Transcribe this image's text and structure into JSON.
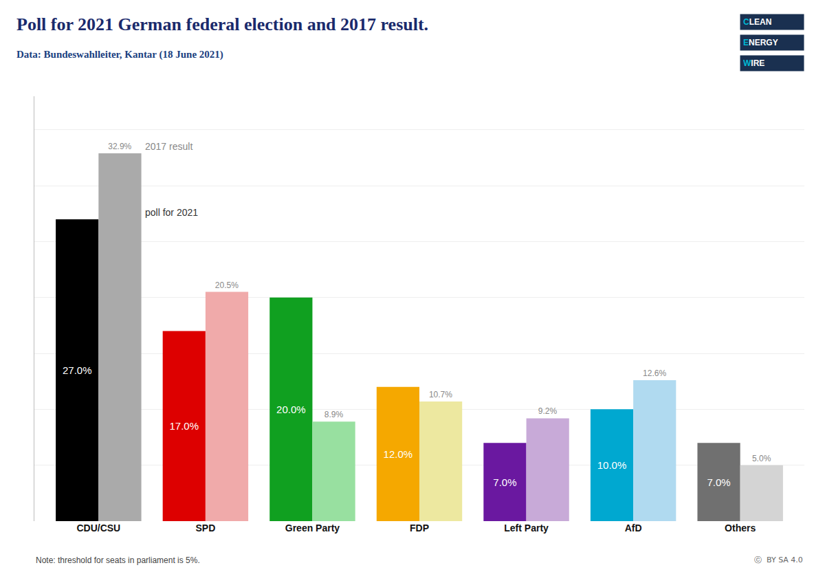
{
  "chart_data": {
    "type": "bar",
    "title": "Poll for 2021 German federal election and 2017 result.",
    "subtitle": "Data: Bundeswahlleiter, Kantar (18 June 2021)",
    "annotations": [
      "Note: threshold for seats in parliament is 5%.",
      "ⓒ  BY SA 4.0",
      "CLEAN",
      "ENERGY",
      "WIRE"
    ],
    "categories": [
      "CDU/CSU",
      "SPD",
      "Green Party",
      "FDP",
      "Left Party",
      "AfD",
      "Others"
    ],
    "series": [
      {
        "name": "poll for 2021",
        "colors": [
          "#000000",
          "#dd0000",
          "#10a020",
          "#f5a800",
          "#6a18a0",
          "#00a8d0",
          "#707070"
        ],
        "values": [
          27.0,
          17.0,
          20.0,
          12.0,
          7.0,
          10.0,
          7.0
        ],
        "value_labels": [
          "27.0%",
          "17.0%",
          "20.0%",
          "12.0%",
          "7.0%",
          "10.0%",
          "7.0%"
        ]
      },
      {
        "name": "2017 result",
        "colors": [
          "#aaaaaa",
          "#f0aaaa",
          "#98e0a0",
          "#ede8a0",
          "#c8aad8",
          "#b0daf0",
          "#d4d4d4"
        ],
        "values": [
          32.9,
          20.5,
          8.9,
          10.7,
          9.2,
          12.6,
          5.0
        ],
        "value_labels": [
          "32.9%",
          "20.5%",
          "8.9%",
          "10.7%",
          "9.2%",
          "12.6%",
          "5.0%"
        ]
      }
    ],
    "ylim": [
      0,
      38
    ],
    "yticks": [
      0,
      5,
      10,
      15,
      20,
      25,
      30,
      35
    ],
    "grid": true,
    "data_labels": true,
    "tick_labels": "x"
  }
}
